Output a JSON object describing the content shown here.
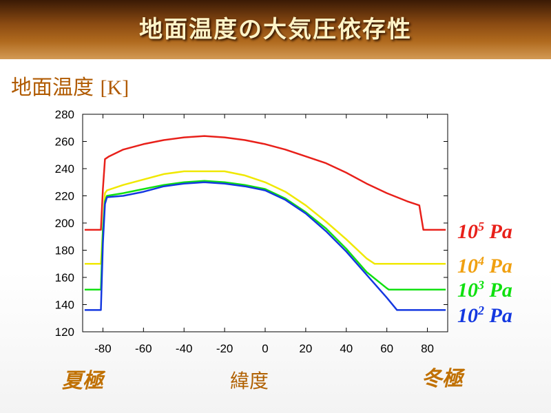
{
  "header": {
    "title": "地面温度の大気圧依存性"
  },
  "labels": {
    "summer_pole": "夏極",
    "winter_pole": "冬極",
    "latitude": "緯度"
  },
  "chart_data": {
    "type": "line",
    "ylabel": {
      "jp": "地面温度",
      "en": "[K]"
    },
    "xlim": [
      -90,
      90
    ],
    "ylim": [
      120,
      280
    ],
    "xticks": [
      -80,
      -60,
      -40,
      -20,
      0,
      20,
      40,
      60,
      80
    ],
    "yticks": [
      120,
      140,
      160,
      180,
      200,
      220,
      240,
      260,
      280
    ],
    "grid": false,
    "legend": "right",
    "series": [
      {
        "base": "10",
        "exp": "5",
        "unit": "Pa",
        "color": "#e8201a",
        "x": [
          -89,
          -83,
          -81,
          -80,
          -79,
          -77,
          -70,
          -60,
          -50,
          -40,
          -30,
          -20,
          -10,
          0,
          10,
          20,
          30,
          40,
          50,
          60,
          70,
          76,
          78,
          80,
          89
        ],
        "y": [
          195,
          195,
          195,
          225,
          247,
          249,
          254,
          258,
          261,
          263,
          264,
          263,
          261,
          258,
          254,
          249,
          244,
          237,
          229,
          222,
          216,
          213,
          195,
          195,
          195
        ]
      },
      {
        "base": "10",
        "exp": "4",
        "unit": "Pa",
        "color": "#f0e800",
        "x": [
          -89,
          -81,
          -80,
          -79,
          -78,
          -70,
          -60,
          -50,
          -40,
          -30,
          -20,
          -10,
          0,
          10,
          20,
          30,
          40,
          50,
          54,
          55,
          89
        ],
        "y": [
          170,
          170,
          195,
          222,
          224,
          228,
          232,
          236,
          238,
          238,
          238,
          235,
          230,
          223,
          213,
          201,
          188,
          174,
          170,
          170,
          170
        ]
      },
      {
        "base": "10",
        "exp": "3",
        "unit": "Pa",
        "color": "#10e010",
        "x": [
          -89,
          -81,
          -80,
          -79,
          -78,
          -70,
          -60,
          -50,
          -40,
          -30,
          -20,
          -10,
          0,
          10,
          20,
          30,
          40,
          50,
          60,
          61,
          89
        ],
        "y": [
          151,
          151,
          195,
          216,
          220,
          222,
          225,
          228,
          230,
          231,
          230,
          228,
          225,
          218,
          208,
          196,
          181,
          164,
          152,
          151,
          151
        ]
      },
      {
        "base": "10",
        "exp": "2",
        "unit": "Pa",
        "color": "#1438e0",
        "x": [
          -89,
          -81,
          -80,
          -79,
          -78,
          -70,
          -60,
          -50,
          -40,
          -30,
          -20,
          -10,
          0,
          10,
          20,
          30,
          40,
          50,
          60,
          65,
          89
        ],
        "y": [
          136,
          136,
          185,
          214,
          219,
          220,
          223,
          227,
          229,
          230,
          229,
          227,
          224,
          217,
          207,
          194,
          179,
          162,
          145,
          136,
          136
        ]
      }
    ]
  }
}
